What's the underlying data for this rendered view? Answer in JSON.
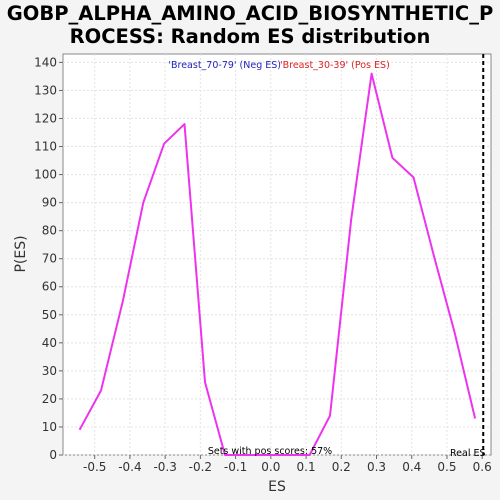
{
  "chart_data": {
    "type": "line",
    "title_line1": "GOBP_ALPHA_AMINO_ACID_BIOSYNTHETIC_P",
    "title_line2": "ROCESS: Random ES distribution",
    "xlabel": "ES",
    "ylabel": "P(ES)",
    "xlim": [
      -0.59,
      0.625
    ],
    "ylim": [
      0,
      143
    ],
    "x_ticks": [
      -0.5,
      -0.4,
      -0.3,
      -0.2,
      -0.1,
      0.0,
      0.1,
      0.2,
      0.3,
      0.4,
      0.5,
      0.6
    ],
    "x_tick_labels": [
      "-0.5",
      "-0.4",
      "-0.3",
      "-0.2",
      "-0.1",
      "0.0",
      "0.1",
      "0.2",
      "0.3",
      "0.4",
      "0.5",
      "0.6"
    ],
    "y_ticks": [
      0,
      10,
      20,
      30,
      40,
      50,
      60,
      70,
      80,
      90,
      100,
      110,
      120,
      130,
      140
    ],
    "y_tick_labels": [
      "0",
      "10",
      "20",
      "30",
      "40",
      "50",
      "60",
      "70",
      "80",
      "90",
      "100",
      "110",
      "120",
      "130",
      "140"
    ],
    "grid": true,
    "series": [
      {
        "color": "#ee33ee",
        "x": [
          -0.543,
          -0.482,
          -0.42,
          -0.362,
          -0.303,
          -0.245,
          -0.187,
          -0.13,
          -0.07,
          -0.01,
          0.05,
          0.11,
          0.168,
          0.228,
          0.286,
          0.345,
          0.405,
          0.463,
          0.521,
          0.58
        ],
        "y": [
          9,
          23,
          55,
          90,
          111,
          118,
          26,
          0,
          0,
          0,
          0,
          0,
          14,
          84,
          136,
          106,
          99,
          71,
          44,
          13
        ]
      }
    ],
    "real_es_line": {
      "x": 0.603,
      "label": "Real ES"
    },
    "legend": [
      {
        "text": "'Breast_70-79' (Neg ES)",
        "color": "#2222bb"
      },
      {
        "text": "'Breast_30-39' (Pos ES)",
        "color": "#dd2222"
      }
    ],
    "annotation": "Sets with pos scores: 57%"
  }
}
